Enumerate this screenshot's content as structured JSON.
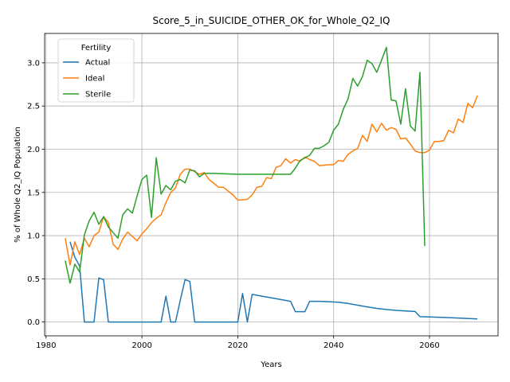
{
  "chart_data": {
    "type": "line",
    "title": "Score_5_in_SUICIDE_OTHER_OK_for_Whole_Q2_IQ",
    "xlabel": "Years",
    "ylabel": "% of Whole Q2_IQ Population",
    "xlim": [
      1979.7,
      2074.3
    ],
    "ylim": [
      -0.16,
      3.34
    ],
    "xticks": [
      1980,
      2000,
      2020,
      2040,
      2060
    ],
    "yticks": [
      0.0,
      0.5,
      1.0,
      1.5,
      2.0,
      2.5,
      3.0
    ],
    "xtick_labels": [
      "1980",
      "2000",
      "2020",
      "2040",
      "2060"
    ],
    "ytick_labels": [
      "0.0",
      "0.5",
      "1.0",
      "1.5",
      "2.0",
      "2.5",
      "3.0"
    ],
    "grid": true,
    "legend": {
      "title": "Fertility",
      "placement": "top-left"
    },
    "series": [
      {
        "name": "Actual",
        "color": "#1f77b4",
        "points": [
          [
            1985,
            0.93
          ],
          [
            1986,
            0.75
          ],
          [
            1987,
            0.65
          ],
          [
            1988,
            0.0
          ],
          [
            1990,
            0.0
          ],
          [
            1991,
            0.51
          ],
          [
            1992,
            0.49
          ],
          [
            1993,
            0.0
          ],
          [
            2004,
            0.0
          ],
          [
            2005,
            0.3
          ],
          [
            2006,
            0.0
          ],
          [
            2007,
            0.0
          ],
          [
            2008,
            0.25
          ],
          [
            2009,
            0.49
          ],
          [
            2010,
            0.47
          ],
          [
            2011,
            0.0
          ],
          [
            2020,
            0.0
          ],
          [
            2021,
            0.33
          ],
          [
            2022,
            0.0
          ],
          [
            2023,
            0.32
          ],
          [
            2025,
            0.3
          ],
          [
            2027,
            0.28
          ],
          [
            2029,
            0.26
          ],
          [
            2031,
            0.24
          ],
          [
            2032,
            0.12
          ],
          [
            2034,
            0.12
          ],
          [
            2035,
            0.24
          ],
          [
            2037,
            0.24
          ],
          [
            2039,
            0.235
          ],
          [
            2041,
            0.23
          ],
          [
            2043,
            0.215
          ],
          [
            2045,
            0.195
          ],
          [
            2047,
            0.175
          ],
          [
            2049,
            0.158
          ],
          [
            2051,
            0.145
          ],
          [
            2053,
            0.135
          ],
          [
            2055,
            0.128
          ],
          [
            2057,
            0.122
          ],
          [
            2058,
            0.062
          ],
          [
            2060,
            0.058
          ],
          [
            2065,
            0.048
          ],
          [
            2070,
            0.036
          ]
        ]
      },
      {
        "name": "Ideal",
        "color": "#ff7f0e",
        "points": [
          [
            1984,
            0.97
          ],
          [
            1985,
            0.66
          ],
          [
            1986,
            0.93
          ],
          [
            1987,
            0.78
          ],
          [
            1988,
            0.97
          ],
          [
            1989,
            0.87
          ],
          [
            1990,
            1.0
          ],
          [
            1991,
            1.04
          ],
          [
            1992,
            1.22
          ],
          [
            1993,
            1.15
          ],
          [
            1994,
            0.9
          ],
          [
            1995,
            0.84
          ],
          [
            1996,
            0.96
          ],
          [
            1997,
            1.04
          ],
          [
            1998,
            0.99
          ],
          [
            1999,
            0.94
          ],
          [
            2000,
            1.02
          ],
          [
            2001,
            1.08
          ],
          [
            2002,
            1.15
          ],
          [
            2003,
            1.2
          ],
          [
            2004,
            1.24
          ],
          [
            2005,
            1.38
          ],
          [
            2006,
            1.5
          ],
          [
            2007,
            1.55
          ],
          [
            2008,
            1.71
          ],
          [
            2009,
            1.77
          ],
          [
            2010,
            1.77
          ],
          [
            2011,
            1.74
          ],
          [
            2012,
            1.71
          ],
          [
            2013,
            1.73
          ],
          [
            2014,
            1.65
          ],
          [
            2016,
            1.56
          ],
          [
            2017,
            1.56
          ],
          [
            2019,
            1.47
          ],
          [
            2020,
            1.41
          ],
          [
            2022,
            1.42
          ],
          [
            2023,
            1.47
          ],
          [
            2024,
            1.56
          ],
          [
            2025,
            1.57
          ],
          [
            2026,
            1.67
          ],
          [
            2027,
            1.66
          ],
          [
            2028,
            1.79
          ],
          [
            2029,
            1.81
          ],
          [
            2030,
            1.89
          ],
          [
            2031,
            1.84
          ],
          [
            2032,
            1.88
          ],
          [
            2033,
            1.86
          ],
          [
            2034,
            1.91
          ],
          [
            2035,
            1.88
          ],
          [
            2036,
            1.86
          ],
          [
            2037,
            1.81
          ],
          [
            2039,
            1.82
          ],
          [
            2040,
            1.82
          ],
          [
            2041,
            1.87
          ],
          [
            2042,
            1.86
          ],
          [
            2043,
            1.94
          ],
          [
            2044,
            1.98
          ],
          [
            2045,
            2.01
          ],
          [
            2046,
            2.16
          ],
          [
            2047,
            2.09
          ],
          [
            2048,
            2.29
          ],
          [
            2049,
            2.2
          ],
          [
            2050,
            2.3
          ],
          [
            2051,
            2.22
          ],
          [
            2052,
            2.25
          ],
          [
            2053,
            2.23
          ],
          [
            2054,
            2.12
          ],
          [
            2055,
            2.13
          ],
          [
            2056,
            2.06
          ],
          [
            2057,
            1.98
          ],
          [
            2058,
            1.96
          ],
          [
            2059,
            1.96
          ],
          [
            2060,
            1.99
          ],
          [
            2061,
            2.09
          ],
          [
            2062,
            2.09
          ],
          [
            2063,
            2.1
          ],
          [
            2064,
            2.22
          ],
          [
            2065,
            2.19
          ],
          [
            2066,
            2.35
          ],
          [
            2067,
            2.31
          ],
          [
            2068,
            2.53
          ],
          [
            2069,
            2.48
          ],
          [
            2070,
            2.62
          ]
        ]
      },
      {
        "name": "Sterile",
        "color": "#2ca02c",
        "points": [
          [
            1984,
            0.71
          ],
          [
            1985,
            0.45
          ],
          [
            1986,
            0.67
          ],
          [
            1987,
            0.58
          ],
          [
            1988,
            1.01
          ],
          [
            1989,
            1.17
          ],
          [
            1990,
            1.27
          ],
          [
            1991,
            1.13
          ],
          [
            1992,
            1.22
          ],
          [
            1993,
            1.1
          ],
          [
            1995,
            0.97
          ],
          [
            1996,
            1.24
          ],
          [
            1997,
            1.31
          ],
          [
            1998,
            1.26
          ],
          [
            1999,
            1.46
          ],
          [
            2000,
            1.65
          ],
          [
            2001,
            1.7
          ],
          [
            2002,
            1.21
          ],
          [
            2003,
            1.9
          ],
          [
            2004,
            1.48
          ],
          [
            2005,
            1.58
          ],
          [
            2006,
            1.53
          ],
          [
            2007,
            1.63
          ],
          [
            2008,
            1.65
          ],
          [
            2009,
            1.61
          ],
          [
            2010,
            1.76
          ],
          [
            2011,
            1.75
          ],
          [
            2012,
            1.68
          ],
          [
            2013,
            1.72
          ],
          [
            2015,
            1.72
          ],
          [
            2020,
            1.71
          ],
          [
            2031,
            1.71
          ],
          [
            2032,
            1.78
          ],
          [
            2033,
            1.87
          ],
          [
            2035,
            1.93
          ],
          [
            2036,
            2.01
          ],
          [
            2037,
            2.01
          ],
          [
            2038,
            2.04
          ],
          [
            2039,
            2.08
          ],
          [
            2040,
            2.22
          ],
          [
            2041,
            2.29
          ],
          [
            2042,
            2.46
          ],
          [
            2043,
            2.58
          ],
          [
            2044,
            2.82
          ],
          [
            2045,
            2.73
          ],
          [
            2046,
            2.84
          ],
          [
            2047,
            3.03
          ],
          [
            2048,
            2.99
          ],
          [
            2049,
            2.89
          ],
          [
            2050,
            3.03
          ],
          [
            2051,
            3.18
          ],
          [
            2052,
            2.57
          ],
          [
            2053,
            2.56
          ],
          [
            2054,
            2.29
          ],
          [
            2055,
            2.7
          ],
          [
            2056,
            2.27
          ],
          [
            2057,
            2.21
          ],
          [
            2058,
            2.89
          ],
          [
            2059,
            0.88
          ]
        ]
      }
    ]
  }
}
